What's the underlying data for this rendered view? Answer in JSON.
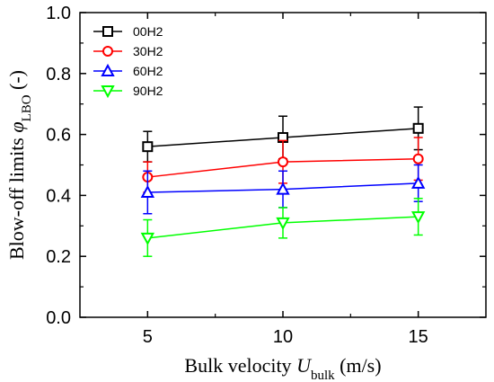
{
  "chart_data": {
    "type": "line",
    "x": [
      5,
      10,
      15
    ],
    "xlim": [
      2.5,
      17.5
    ],
    "ylim": [
      0.0,
      1.0
    ],
    "xticks": [
      5,
      10,
      15
    ],
    "xtick_labels": [
      "5",
      "10",
      "15"
    ],
    "yticks": [
      0.0,
      0.2,
      0.4,
      0.6,
      0.8,
      1.0
    ],
    "ytick_labels": [
      "0.0",
      "0.2",
      "0.4",
      "0.6",
      "0.8",
      "1.0"
    ],
    "xlabel": {
      "pre": "Bulk velocity ",
      "sym": "U",
      "sub": "bulk",
      "post": " (m/s)"
    },
    "ylabel": {
      "pre": "Blow-off limits ",
      "sym": "φ",
      "sub": "LBO",
      "post": " (-)"
    },
    "grid": false,
    "legend_position": "top-left",
    "series": [
      {
        "name": "00H2",
        "color": "#000000",
        "marker": "square",
        "values": [
          0.56,
          0.59,
          0.62
        ],
        "err": [
          0.05,
          0.07,
          0.07
        ]
      },
      {
        "name": "30H2",
        "color": "#ff0000",
        "marker": "circle",
        "values": [
          0.46,
          0.51,
          0.52
        ],
        "err": [
          0.05,
          0.07,
          0.07
        ]
      },
      {
        "name": "60H2",
        "color": "#0000ff",
        "marker": "triangle-up",
        "values": [
          0.41,
          0.42,
          0.44
        ],
        "err": [
          0.07,
          0.06,
          0.06
        ]
      },
      {
        "name": "90H2",
        "color": "#00ff00",
        "marker": "triangle-down",
        "values": [
          0.26,
          0.31,
          0.33
        ],
        "err": [
          0.06,
          0.05,
          0.06
        ]
      }
    ]
  }
}
